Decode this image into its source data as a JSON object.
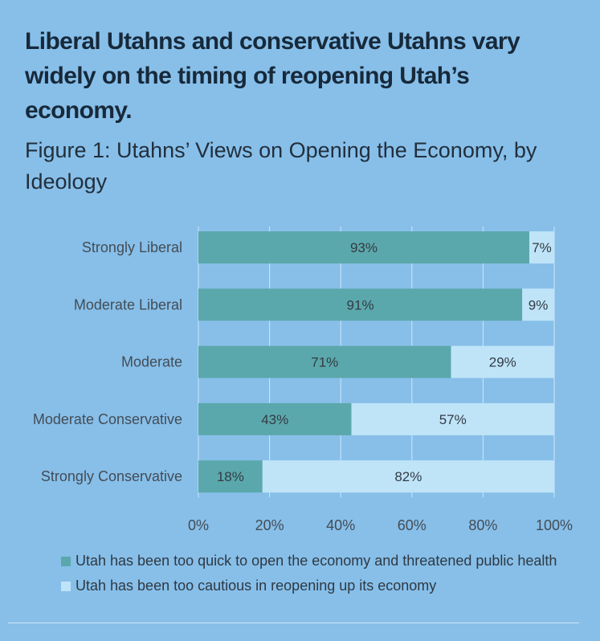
{
  "headline": "Liberal Utahns and conservative Utahns vary widely on the timing of reopening Utah’s economy.",
  "figure_title": "Figure 1: Utahns’ Views on Opening the Economy, by Ideology",
  "colors": {
    "background": "#87bfe9",
    "series1": "#5ba8ac",
    "series2": "#bfe4f8",
    "grid": "#cfe6f7"
  },
  "chart_data": {
    "type": "bar",
    "orientation": "horizontal",
    "stacked": true,
    "title": "Figure 1: Utahns’ Views on Opening the Economy, by Ideology",
    "categories": [
      "Strongly Liberal",
      "Moderate Liberal",
      "Moderate",
      "Moderate Conservative",
      "Strongly Conservative"
    ],
    "series": [
      {
        "name": "Utah has been too quick to open the economy and threatened public health",
        "values": [
          93,
          91,
          71,
          43,
          18
        ],
        "labels": [
          "93%",
          "91%",
          "71%",
          "43%",
          "18%"
        ],
        "color": "#5ba8ac"
      },
      {
        "name": "Utah has been too cautious in reopening up its economy",
        "values": [
          7,
          9,
          29,
          57,
          82
        ],
        "labels": [
          "7%",
          "9%",
          "29%",
          "57%",
          "82%"
        ],
        "color": "#bfe4f8"
      }
    ],
    "xlim": [
      0,
      100
    ],
    "xticks": [
      0,
      20,
      40,
      60,
      80,
      100
    ],
    "xtick_labels": [
      "0%",
      "20%",
      "40%",
      "60%",
      "80%",
      "100%"
    ],
    "grid": true,
    "legend_position": "bottom"
  }
}
